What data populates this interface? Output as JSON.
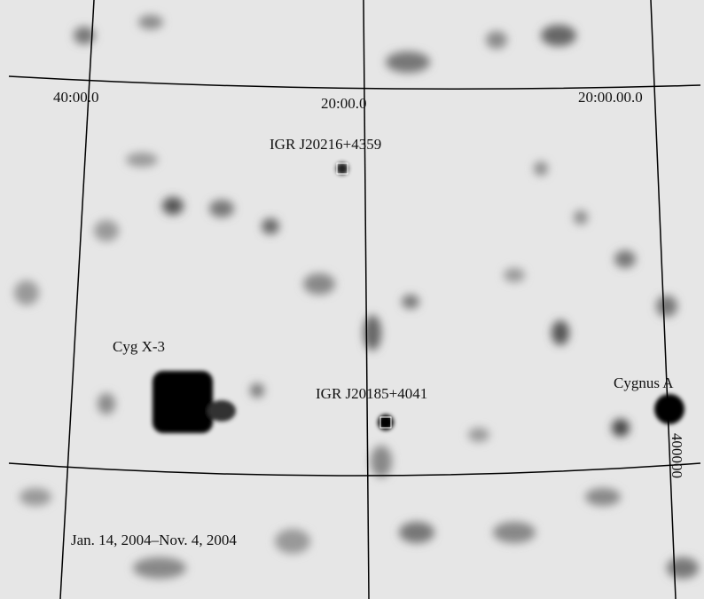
{
  "axis_labels": {
    "ra": [
      "40:00.0",
      "20:00.0",
      "20:00.00.0"
    ],
    "dec": "400000"
  },
  "sources": [
    {
      "label": "IGR J20216+4359"
    },
    {
      "label": "Cyg X-3"
    },
    {
      "label": "IGR J20185+4041"
    },
    {
      "label": "Cygnus A"
    }
  ],
  "date_range": "Jan. 14, 2004–Nov. 4, 2004"
}
